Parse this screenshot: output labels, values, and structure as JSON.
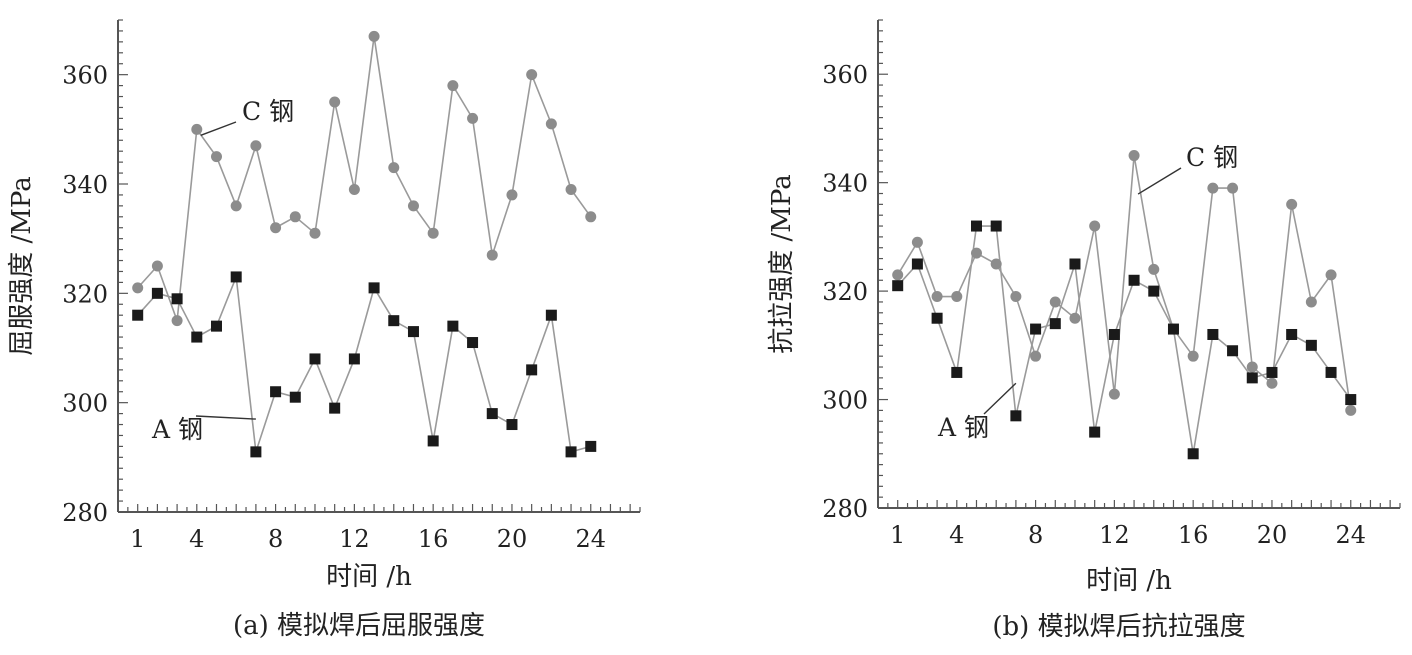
{
  "colors": {
    "a_steel": "#1a1a1a",
    "c_steel": "#8c8c8c",
    "line": "#9a9a9a",
    "axis": "#555555"
  },
  "chart_data": [
    {
      "type": "line",
      "caption": "(a) 模拟焊后屈服强度",
      "xlabel": "时间 /h",
      "ylabel": "屈服强度 /MPa",
      "xlim": [
        0,
        26.5
      ],
      "ylim": [
        280,
        370
      ],
      "xticks": [
        1,
        4,
        8,
        12,
        16,
        20,
        24
      ],
      "yticks": [
        280,
        300,
        320,
        340,
        360
      ],
      "x": [
        1,
        2,
        3,
        4,
        5,
        6,
        7,
        8,
        9,
        10,
        11,
        12,
        13,
        14,
        15,
        16,
        17,
        18,
        19,
        20,
        21,
        22,
        23,
        24
      ],
      "series": [
        {
          "name": "C 钢",
          "marker": "circle",
          "values": [
            321,
            325,
            315,
            350,
            345,
            336,
            347,
            332,
            334,
            331,
            355,
            339,
            367,
            343,
            336,
            331,
            358,
            352,
            327,
            338,
            360,
            351,
            339,
            334
          ]
        },
        {
          "name": "A 钢",
          "marker": "square",
          "values": [
            316,
            320,
            319,
            312,
            314,
            323,
            291,
            302,
            301,
            308,
            299,
            308,
            321,
            315,
            313,
            293,
            314,
            311,
            298,
            296,
            306,
            316,
            291,
            292
          ]
        }
      ],
      "annotations": [
        {
          "text": "C 钢",
          "series": "C 钢",
          "x": 4,
          "y": 350
        },
        {
          "text": "A 钢",
          "series": "A 钢",
          "x": 7,
          "y": 297
        }
      ]
    },
    {
      "type": "line",
      "caption": "(b) 模拟焊后抗拉强度",
      "xlabel": "时间 /h",
      "ylabel": "抗拉强度 /MPa",
      "xlim": [
        0,
        26.5
      ],
      "ylim": [
        280,
        370
      ],
      "xticks": [
        1,
        4,
        8,
        12,
        16,
        20,
        24
      ],
      "yticks": [
        280,
        300,
        320,
        340,
        360
      ],
      "x": [
        1,
        2,
        3,
        4,
        5,
        6,
        7,
        8,
        9,
        10,
        11,
        12,
        13,
        14,
        15,
        16,
        17,
        18,
        19,
        20,
        21,
        22,
        23,
        24
      ],
      "series": [
        {
          "name": "C 钢",
          "marker": "circle",
          "values": [
            323,
            329,
            319,
            319,
            327,
            325,
            319,
            308,
            318,
            315,
            332,
            301,
            345,
            324,
            313,
            308,
            339,
            339,
            306,
            303,
            336,
            318,
            323,
            298
          ]
        },
        {
          "name": "A 钢",
          "marker": "square",
          "values": [
            321,
            325,
            315,
            305,
            332,
            332,
            297,
            313,
            314,
            325,
            294,
            312,
            322,
            320,
            313,
            290,
            312,
            309,
            304,
            305,
            312,
            310,
            305,
            300
          ]
        }
      ],
      "annotations": [
        {
          "text": "C 钢",
          "series": "C 钢",
          "x": 13,
          "y": 339
        },
        {
          "text": "A 钢",
          "series": "A 钢",
          "x": 7,
          "y": 303
        }
      ]
    }
  ]
}
